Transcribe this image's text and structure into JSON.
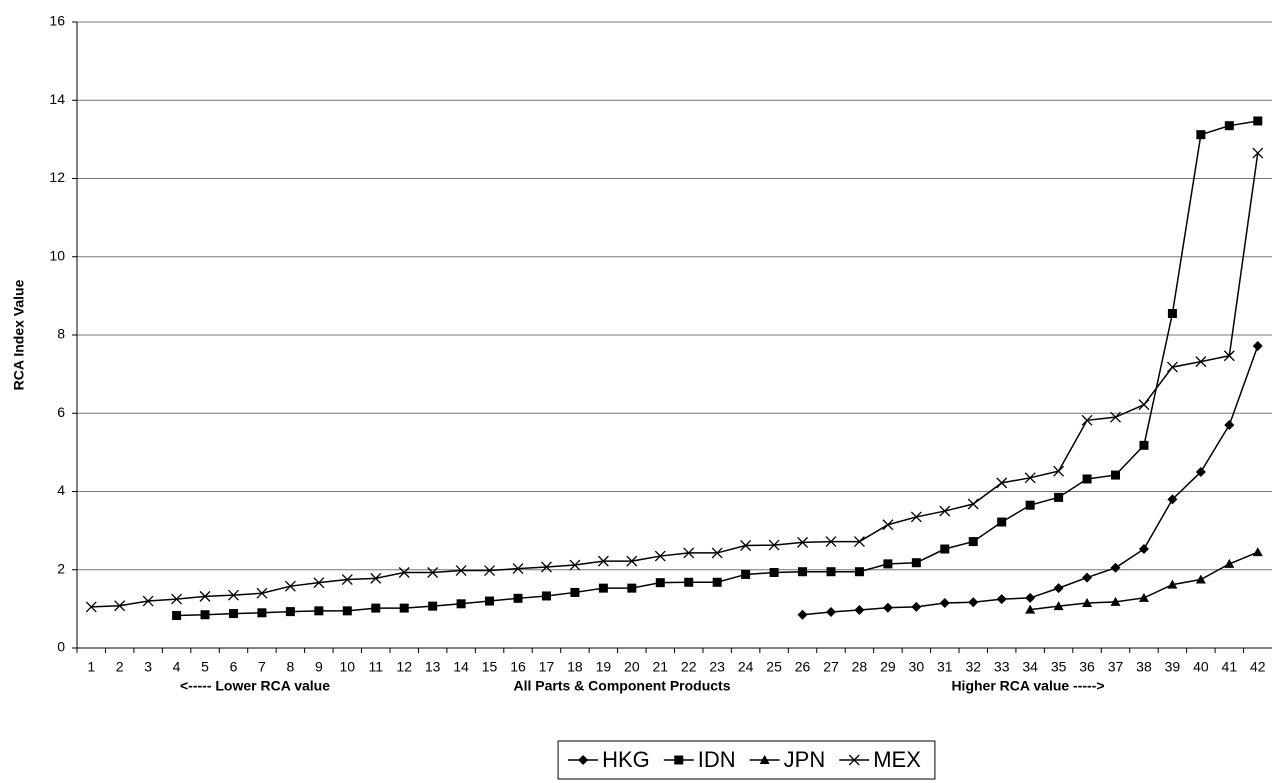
{
  "chart_data": {
    "type": "line",
    "y_label": "RCA Index Value",
    "x_annotations": [
      "<----- Lower RCA value",
      "All Parts & Component Products",
      "Higher RCA value ----->"
    ],
    "categories": [
      "1",
      "2",
      "3",
      "4",
      "5",
      "6",
      "7",
      "8",
      "9",
      "10",
      "11",
      "12",
      "13",
      "14",
      "15",
      "16",
      "17",
      "18",
      "19",
      "20",
      "21",
      "22",
      "23",
      "24",
      "25",
      "26",
      "27",
      "28",
      "29",
      "30",
      "31",
      "32",
      "33",
      "34",
      "35",
      "36",
      "37",
      "38",
      "39",
      "40",
      "41",
      "42"
    ],
    "ylim": [
      0,
      16
    ],
    "yticks": [
      0,
      2,
      4,
      6,
      8,
      10,
      12,
      14,
      16
    ],
    "grid": true,
    "series": [
      {
        "name": "HKG",
        "color": "#000000",
        "marker": "diamond",
        "values": [
          null,
          null,
          null,
          null,
          null,
          null,
          null,
          null,
          null,
          null,
          null,
          null,
          null,
          null,
          null,
          null,
          null,
          null,
          null,
          null,
          null,
          null,
          null,
          null,
          null,
          0.85,
          0.92,
          0.97,
          1.03,
          1.05,
          1.15,
          1.17,
          1.25,
          1.28,
          1.53,
          1.8,
          2.05,
          2.53,
          3.8,
          4.5,
          5.7,
          7.72
        ]
      },
      {
        "name": "IDN",
        "color": "#000000",
        "marker": "square",
        "values": [
          null,
          null,
          null,
          0.83,
          0.85,
          0.88,
          0.9,
          0.93,
          0.95,
          0.95,
          1.02,
          1.02,
          1.07,
          1.13,
          1.2,
          1.27,
          1.33,
          1.42,
          1.53,
          1.53,
          1.67,
          1.68,
          1.68,
          1.88,
          1.93,
          1.95,
          1.95,
          1.95,
          2.15,
          2.18,
          2.53,
          2.72,
          3.22,
          3.65,
          3.85,
          4.32,
          4.42,
          5.18,
          8.55,
          13.12,
          13.35,
          13.47
        ]
      },
      {
        "name": "JPN",
        "color": "#000000",
        "marker": "triangle",
        "values": [
          null,
          null,
          null,
          null,
          null,
          null,
          null,
          null,
          null,
          null,
          null,
          null,
          null,
          null,
          null,
          null,
          null,
          null,
          null,
          null,
          null,
          null,
          null,
          null,
          null,
          null,
          null,
          null,
          null,
          null,
          null,
          null,
          null,
          0.98,
          1.07,
          1.15,
          1.18,
          1.28,
          1.62,
          1.75,
          2.15,
          2.45
        ]
      },
      {
        "name": "MEX",
        "color": "#000000",
        "marker": "x",
        "values": [
          1.05,
          1.08,
          1.2,
          1.25,
          1.32,
          1.35,
          1.4,
          1.58,
          1.67,
          1.75,
          1.78,
          1.93,
          1.93,
          1.98,
          1.98,
          2.03,
          2.07,
          2.12,
          2.22,
          2.22,
          2.35,
          2.43,
          2.43,
          2.62,
          2.63,
          2.7,
          2.72,
          2.72,
          3.15,
          3.35,
          3.5,
          3.68,
          4.22,
          4.35,
          4.52,
          5.82,
          5.9,
          6.22,
          7.18,
          7.32,
          7.47,
          12.65
        ]
      }
    ],
    "legend": "bottom"
  }
}
